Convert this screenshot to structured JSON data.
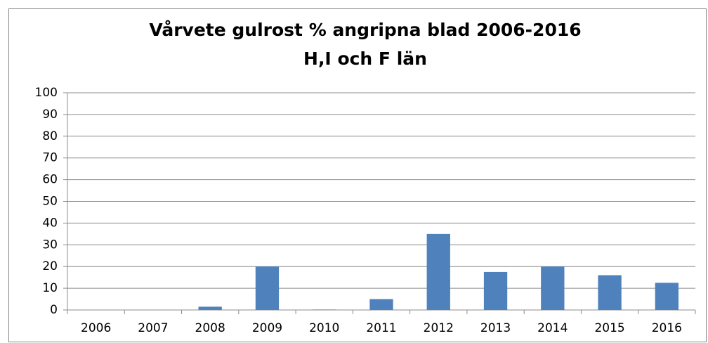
{
  "chart_data": {
    "type": "bar",
    "title": "Vårvete gulrost % angripna blad 2006-2016",
    "subtitle": "H,I och F län",
    "categories": [
      "2006",
      "2007",
      "2008",
      "2009",
      "2010",
      "2011",
      "2012",
      "2013",
      "2014",
      "2015",
      "2016"
    ],
    "values": [
      0,
      0,
      1.5,
      20,
      0.2,
      5,
      35,
      17.5,
      20,
      16,
      12.5
    ],
    "color": "#4f81bd",
    "ylim": [
      0,
      100
    ],
    "yticks": [
      0,
      10,
      20,
      30,
      40,
      50,
      60,
      70,
      80,
      90,
      100
    ],
    "grid": true
  }
}
